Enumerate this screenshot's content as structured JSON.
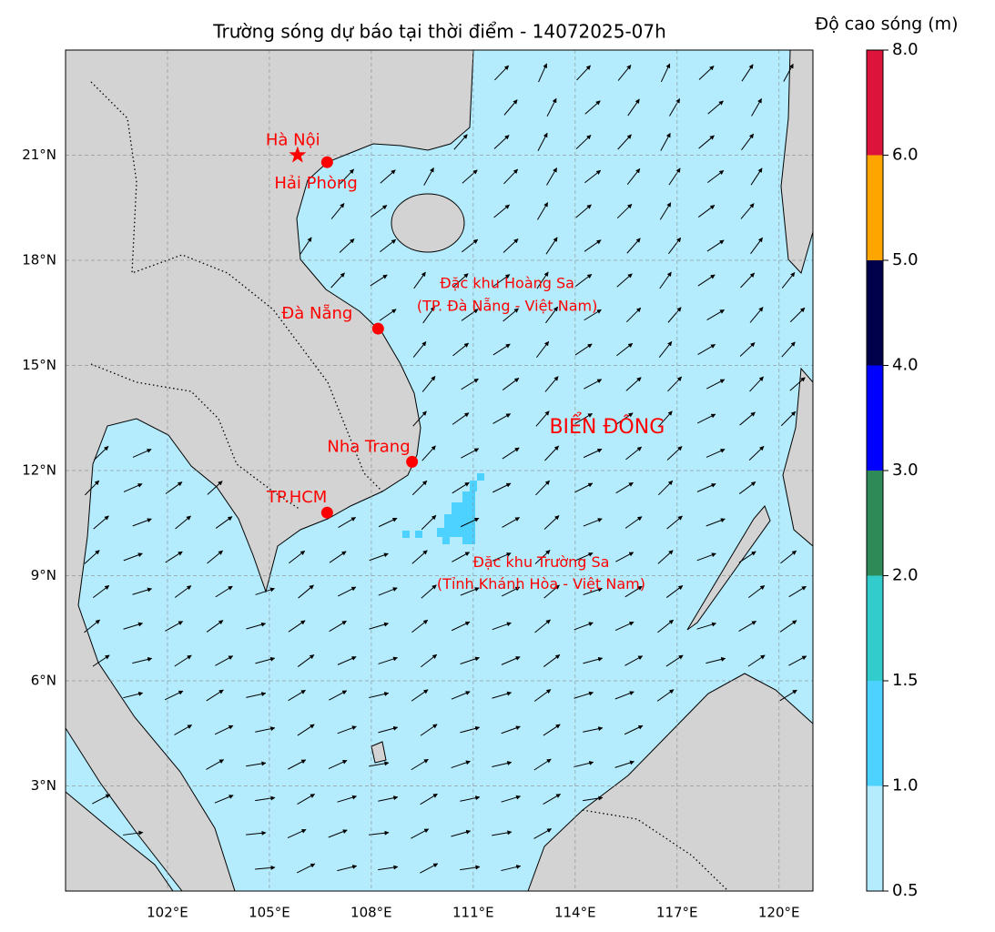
{
  "title": "Trường sóng dự báo tại thời điểm - 14072025-07h",
  "colorbar": {
    "label": "Độ cao sóng (m)",
    "levels": [
      {
        "value": 0.5,
        "label": "0.5"
      },
      {
        "value": 1,
        "label": "1.0"
      },
      {
        "value": 1.5,
        "label": "1.5"
      },
      {
        "value": 2,
        "label": "2.0"
      },
      {
        "value": 3,
        "label": "3.0"
      },
      {
        "value": 4,
        "label": "4.0"
      },
      {
        "value": 5,
        "label": "5.0"
      },
      {
        "value": 6,
        "label": "6.0"
      },
      {
        "value": 8,
        "label": "8.0"
      }
    ],
    "colors": [
      "#b4ecfe",
      "#4dd2ff",
      "#33cccc",
      "#2e8b57",
      "#0000ff",
      "#00004b",
      "#ffa500",
      "#dc143c"
    ]
  },
  "map": {
    "lon_range": [
      99,
      121
    ],
    "lat_range": [
      0,
      24
    ],
    "xticks": [
      {
        "value": 102,
        "label": "102°E"
      },
      {
        "value": 105,
        "label": "105°E"
      },
      {
        "value": 108,
        "label": "108°E"
      },
      {
        "value": 111,
        "label": "111°E"
      },
      {
        "value": 114,
        "label": "114°E"
      },
      {
        "value": 117,
        "label": "117°E"
      },
      {
        "value": 120,
        "label": "120°E"
      }
    ],
    "yticks": [
      {
        "value": 3,
        "label": "3°N"
      },
      {
        "value": 6,
        "label": "6°N"
      },
      {
        "value": 9,
        "label": "9°N"
      },
      {
        "value": 12,
        "label": "12°N"
      },
      {
        "value": 15,
        "label": "15°N"
      },
      {
        "value": 18,
        "label": "18°N"
      },
      {
        "value": 21,
        "label": "21°N"
      }
    ],
    "grid": true,
    "cities": [
      {
        "name": "Hà Nội",
        "lon": 105.83,
        "lat": 21.0,
        "marker": "star"
      },
      {
        "name": "Hải Phòng",
        "lon": 106.7,
        "lat": 20.8,
        "marker": "dot"
      },
      {
        "name": "Đà Nẵng",
        "lon": 108.2,
        "lat": 16.05,
        "marker": "dot"
      },
      {
        "name": "Nha Trang",
        "lon": 109.2,
        "lat": 12.25,
        "marker": "dot"
      },
      {
        "name": "TP.HCM",
        "lon": 106.7,
        "lat": 10.8,
        "marker": "dot"
      }
    ],
    "annotations": [
      {
        "text": "Đặc khu Hoàng Sa",
        "lon": 112.0,
        "lat": 17.33
      },
      {
        "text": "(TP. Đà Nẵng - Việt Nam)",
        "lon": 112.0,
        "lat": 16.68
      },
      {
        "text": "BIỂN ĐÔNG",
        "lon": 114.94,
        "lat": 13.22
      },
      {
        "text": "Đặc khu Trường Sa",
        "lon": 113.0,
        "lat": 9.36
      },
      {
        "text": "(Tỉnh Khánh Hòa - Việt Nam)",
        "lon": 113.0,
        "lat": 8.74
      }
    ]
  }
}
